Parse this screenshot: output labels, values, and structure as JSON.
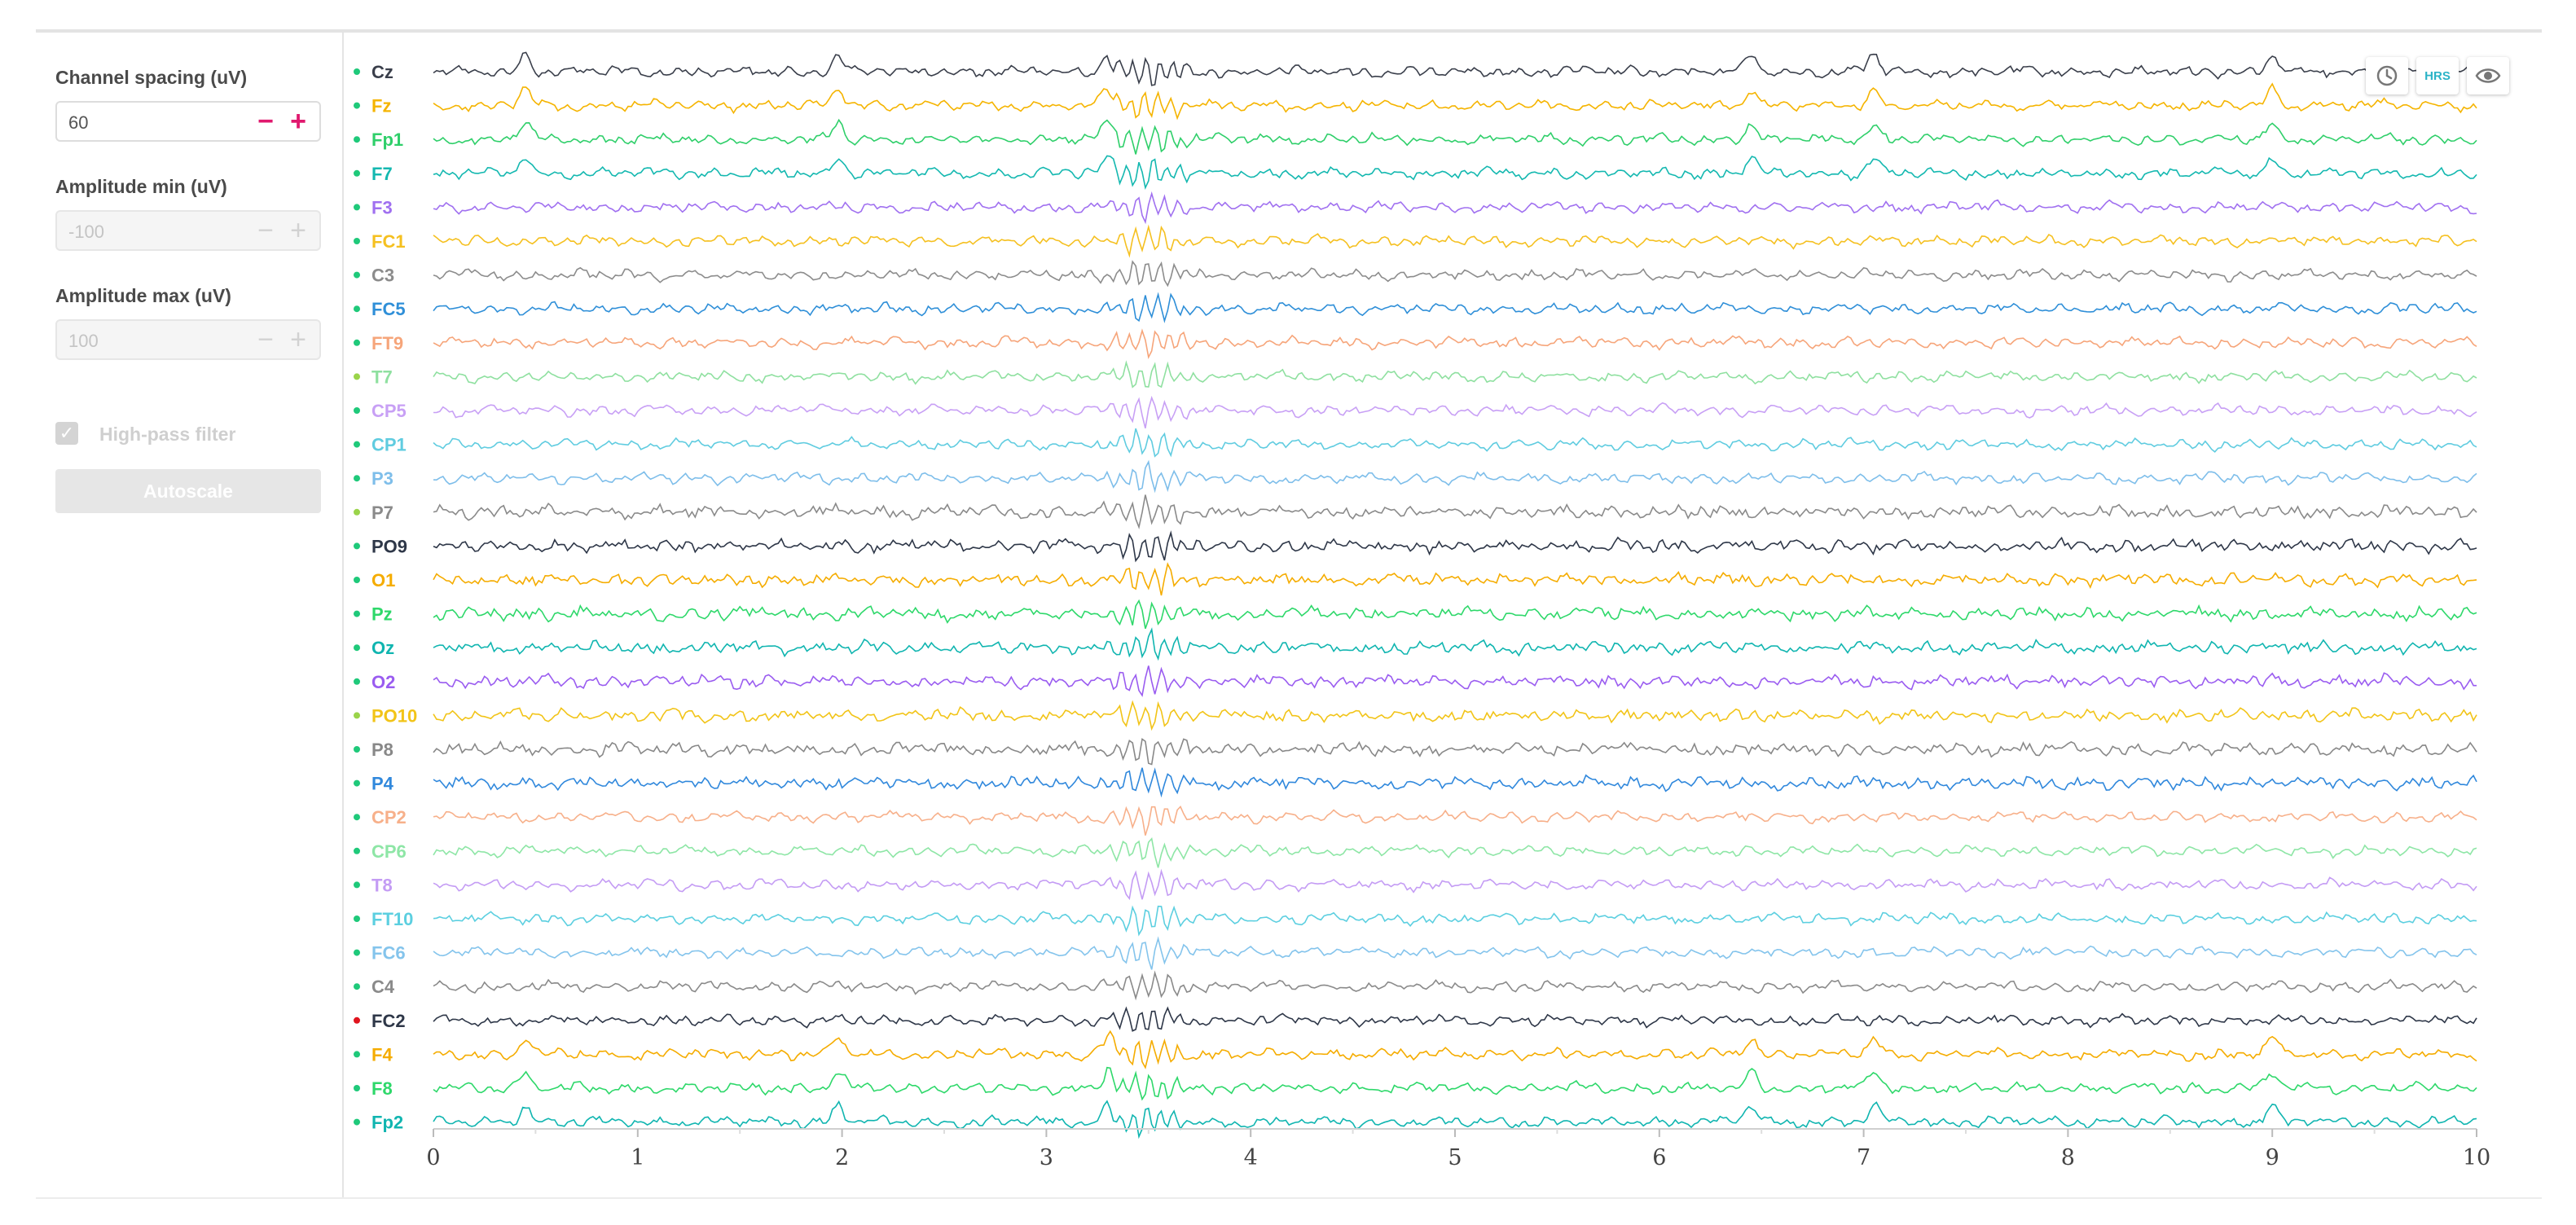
{
  "sidebar": {
    "channel_spacing": {
      "label": "Channel spacing (uV)",
      "value": "60",
      "minus": "−",
      "plus": "+"
    },
    "amplitude_min": {
      "label": "Amplitude min (uV)",
      "value": "-100",
      "minus": "−",
      "plus": "+"
    },
    "amplitude_max": {
      "label": "Amplitude max (uV)",
      "value": "100",
      "minus": "−",
      "plus": "+"
    },
    "high_pass": {
      "label": "High-pass filter",
      "checked": true,
      "check_glyph": "✓"
    },
    "autoscale_label": "Autoscale"
  },
  "toolbar": {
    "clock_icon": "clock-icon",
    "hrs_label": "HRS",
    "eye_icon": "eye-icon"
  },
  "chart_data": {
    "type": "line",
    "xlim": [
      0,
      10
    ],
    "x_ticks": [
      "0",
      "1",
      "2",
      "3",
      "4",
      "5",
      "6",
      "7",
      "8",
      "9",
      "10"
    ],
    "channel_spacing_uV": 60,
    "channels": [
      {
        "name": "Cz",
        "color": "#3a3f4b",
        "status": "#1fc97a"
      },
      {
        "name": "Fz",
        "color": "#f5b400",
        "status": "#1fc97a"
      },
      {
        "name": "Fp1",
        "color": "#2fcf6a",
        "status": "#1fc97a"
      },
      {
        "name": "F7",
        "color": "#14b8b0",
        "status": "#1fc97a"
      },
      {
        "name": "F3",
        "color": "#a070f0",
        "status": "#1fc97a"
      },
      {
        "name": "FC1",
        "color": "#f5c020",
        "status": "#1fc97a"
      },
      {
        "name": "C3",
        "color": "#8c8c8c",
        "status": "#1fc97a"
      },
      {
        "name": "FC5",
        "color": "#2f8fd8",
        "status": "#1fc97a"
      },
      {
        "name": "FT9",
        "color": "#f6a57a",
        "status": "#1fc97a"
      },
      {
        "name": "T7",
        "color": "#8fe0a0",
        "status": "#9ad44a"
      },
      {
        "name": "CP5",
        "color": "#c8a0f5",
        "status": "#1fc97a"
      },
      {
        "name": "CP1",
        "color": "#60cce0",
        "status": "#1fc97a"
      },
      {
        "name": "P3",
        "color": "#7ebeea",
        "status": "#1fc97a"
      },
      {
        "name": "P7",
        "color": "#8a8a8a",
        "status": "#9ad44a"
      },
      {
        "name": "PO9",
        "color": "#2e3748",
        "status": "#1fc97a"
      },
      {
        "name": "O1",
        "color": "#f5ac00",
        "status": "#1fc97a"
      },
      {
        "name": "Pz",
        "color": "#2ed86a",
        "status": "#1fc97a"
      },
      {
        "name": "Oz",
        "color": "#10b5b0",
        "status": "#1fc97a"
      },
      {
        "name": "O2",
        "color": "#9a5cf0",
        "status": "#1fc97a"
      },
      {
        "name": "PO10",
        "color": "#f2c418",
        "status": "#9ad44a"
      },
      {
        "name": "P8",
        "color": "#888888",
        "status": "#1fc97a"
      },
      {
        "name": "P4",
        "color": "#3088dc",
        "status": "#1fc97a"
      },
      {
        "name": "CP2",
        "color": "#f7b08a",
        "status": "#1fc97a"
      },
      {
        "name": "CP6",
        "color": "#8ee6a6",
        "status": "#1fc97a"
      },
      {
        "name": "T8",
        "color": "#c49cf4",
        "status": "#1fc97a"
      },
      {
        "name": "FT10",
        "color": "#5ccfe0",
        "status": "#1fc97a"
      },
      {
        "name": "FC6",
        "color": "#84c4ec",
        "status": "#1fc97a"
      },
      {
        "name": "C4",
        "color": "#8a8a8a",
        "status": "#1fc97a"
      },
      {
        "name": "FC2",
        "color": "#2e3748",
        "status": "#e0141e"
      },
      {
        "name": "F4",
        "color": "#f5ac00",
        "status": "#1fc97a"
      },
      {
        "name": "F8",
        "color": "#2ed86a",
        "status": "#1fc97a"
      },
      {
        "name": "Fp2",
        "color": "#10b5b0",
        "status": "#1fc97a"
      }
    ]
  }
}
